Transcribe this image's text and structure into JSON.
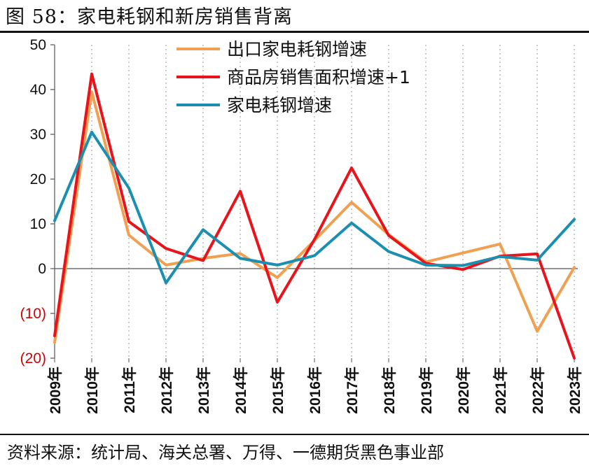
{
  "figure": {
    "title": "图  58：家电耗钢和新房销售背离",
    "source": "资料来源：统计局、海关总署、万得、一德期货黑色事业部"
  },
  "chart_data": {
    "type": "line",
    "title": "图  58：家电耗钢和新房销售背离",
    "categories": [
      "2009年",
      "2010年",
      "2011年",
      "2012年",
      "2013年",
      "2014年",
      "2015年",
      "2016年",
      "2017年",
      "2018年",
      "2019年",
      "2020年",
      "2021年",
      "2022年",
      "2023年"
    ],
    "ylim": [
      -20,
      50
    ],
    "yticks": [
      50,
      40,
      30,
      20,
      10,
      0,
      -10,
      -20
    ],
    "ytick_labels": [
      "50",
      "40",
      "30",
      "20",
      "10",
      "0",
      "(10)",
      "(20)"
    ],
    "legend_position": "top-center",
    "grid": "vertical-dotted",
    "series": [
      {
        "name": "出口家电耗钢增速",
        "color": "#F0A050",
        "values": [
          -16.5,
          39.5,
          7.5,
          0.8,
          2.3,
          3.4,
          -2.0,
          6.3,
          14.8,
          7.6,
          1.5,
          3.5,
          5.5,
          -14.0,
          0.3
        ]
      },
      {
        "name": "商品房销售面积增速+1",
        "color": "#E8141C",
        "values": [
          -15.0,
          43.5,
          10.5,
          4.5,
          1.8,
          17.3,
          -7.5,
          6.5,
          22.5,
          7.4,
          1.2,
          -0.2,
          2.8,
          3.3,
          -20.0
        ]
      },
      {
        "name": "家电耗钢增速",
        "color": "#1A8FB0",
        "values": [
          10.7,
          30.5,
          18.0,
          -3.2,
          8.7,
          2.3,
          0.8,
          2.9,
          10.2,
          3.8,
          0.8,
          0.7,
          2.7,
          1.9,
          11.0
        ]
      }
    ]
  }
}
